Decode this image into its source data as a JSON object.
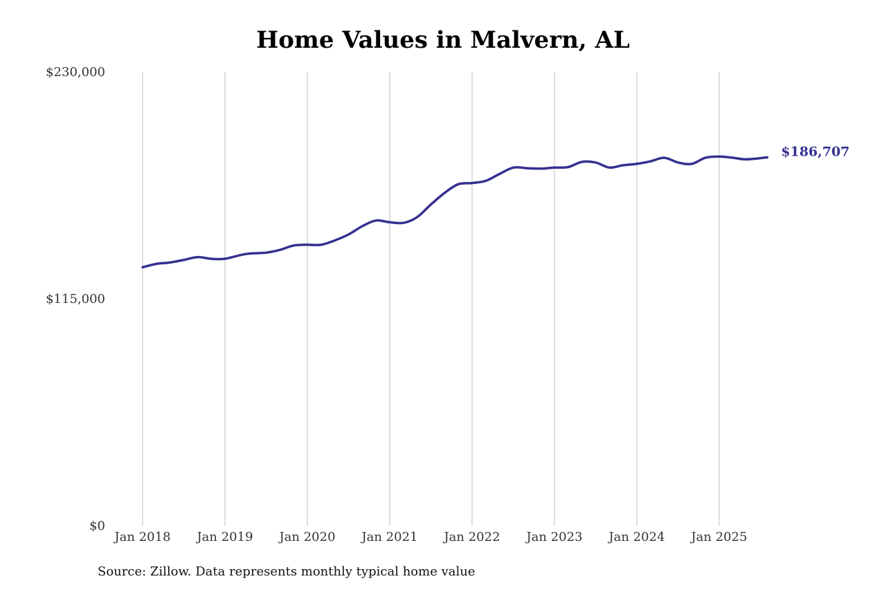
{
  "chart_data": {
    "type": "line",
    "title": "Home Values in Malvern, AL",
    "source": "Source: Zillow. Data represents monthly typical home value",
    "y_ticks": [
      {
        "value": 0,
        "label": "$0"
      },
      {
        "value": 115000,
        "label": "$115,000"
      },
      {
        "value": 230000,
        "label": "$230,000"
      }
    ],
    "x_ticks": [
      {
        "value": 2018.0,
        "label": "Jan 2018"
      },
      {
        "value": 2019.0,
        "label": "Jan 2019"
      },
      {
        "value": 2020.0,
        "label": "Jan 2020"
      },
      {
        "value": 2021.0,
        "label": "Jan 2021"
      },
      {
        "value": 2022.0,
        "label": "Jan 2022"
      },
      {
        "value": 2023.0,
        "label": "Jan 2023"
      },
      {
        "value": 2024.0,
        "label": "Jan 2024"
      },
      {
        "value": 2025.0,
        "label": "Jan 2025"
      }
    ],
    "ylim": [
      0,
      230000
    ],
    "xlim": [
      2017.5,
      2026.0
    ],
    "grid": "vertical",
    "line_color": "#35308f",
    "end_label": "$186,707",
    "series": [
      {
        "points": [
          [
            2018.0,
            131000
          ],
          [
            2018.167,
            132700
          ],
          [
            2018.333,
            133400
          ],
          [
            2018.5,
            134700
          ],
          [
            2018.667,
            136100
          ],
          [
            2018.833,
            135300
          ],
          [
            2019.0,
            135300
          ],
          [
            2019.25,
            137700
          ],
          [
            2019.5,
            138400
          ],
          [
            2019.667,
            139800
          ],
          [
            2019.833,
            142000
          ],
          [
            2020.0,
            142400
          ],
          [
            2020.167,
            142400
          ],
          [
            2020.333,
            144600
          ],
          [
            2020.5,
            147600
          ],
          [
            2020.667,
            151800
          ],
          [
            2020.833,
            154700
          ],
          [
            2021.0,
            153800
          ],
          [
            2021.167,
            153500
          ],
          [
            2021.333,
            156400
          ],
          [
            2021.5,
            162800
          ],
          [
            2021.667,
            168700
          ],
          [
            2021.833,
            173100
          ],
          [
            2022.0,
            173700
          ],
          [
            2022.167,
            174800
          ],
          [
            2022.333,
            178300
          ],
          [
            2022.5,
            181500
          ],
          [
            2022.667,
            181200
          ],
          [
            2022.833,
            181000
          ],
          [
            2023.0,
            181500
          ],
          [
            2023.167,
            181800
          ],
          [
            2023.333,
            184400
          ],
          [
            2023.5,
            184100
          ],
          [
            2023.667,
            181500
          ],
          [
            2023.833,
            182700
          ],
          [
            2024.0,
            183400
          ],
          [
            2024.167,
            184700
          ],
          [
            2024.333,
            186500
          ],
          [
            2024.5,
            184100
          ],
          [
            2024.667,
            183400
          ],
          [
            2024.833,
            186500
          ],
          [
            2025.0,
            187100
          ],
          [
            2025.167,
            186500
          ],
          [
            2025.333,
            185700
          ],
          [
            2025.583,
            186707
          ]
        ]
      }
    ]
  }
}
